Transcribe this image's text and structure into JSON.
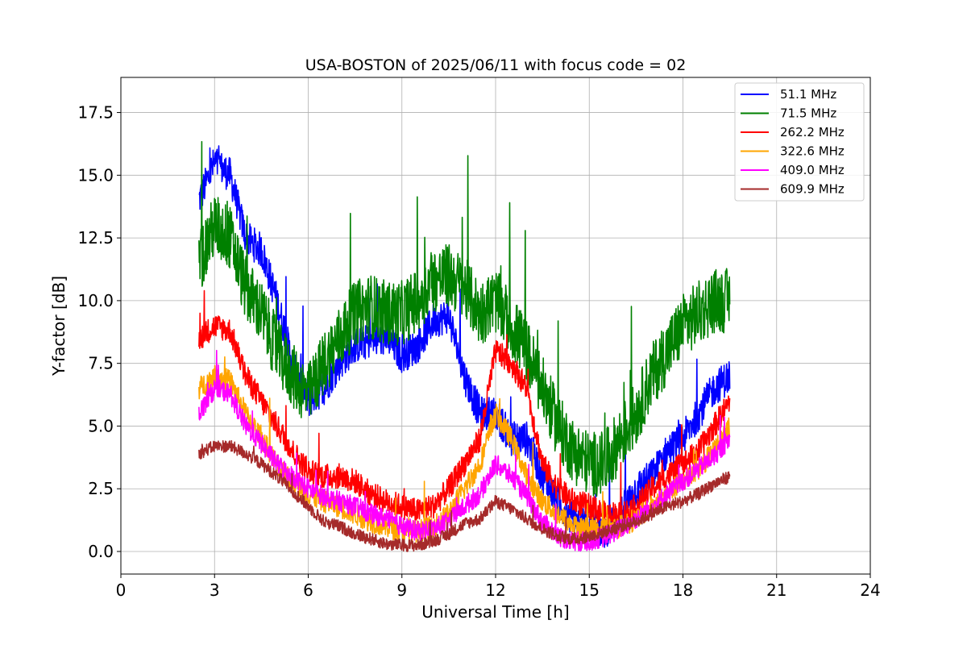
{
  "chart_data": {
    "type": "line",
    "title": "USA-BOSTON of 2025/06/11 with focus code = 02",
    "xlabel": "Universal Time [h]",
    "ylabel": "Y-factor [dB]",
    "xlim": [
      0,
      24
    ],
    "ylim": [
      -0.9,
      18.9
    ],
    "xticks": [
      0,
      3,
      6,
      9,
      12,
      15,
      18,
      21,
      24
    ],
    "xtick_labels": [
      "0",
      "3",
      "6",
      "9",
      "12",
      "15",
      "18",
      "21",
      "24"
    ],
    "yticks": [
      0.0,
      2.5,
      5.0,
      7.5,
      10.0,
      12.5,
      15.0,
      17.5
    ],
    "ytick_labels": [
      "0.0",
      "2.5",
      "5.0",
      "7.5",
      "10.0",
      "12.5",
      "15.0",
      "17.5"
    ],
    "grid": true,
    "legend_position": "top-right",
    "series": [
      {
        "name": "  51.1 MHz",
        "color": "#0000ff",
        "noise": 0.7,
        "x": [
          2.5,
          3.0,
          3.5,
          4.0,
          4.5,
          5.0,
          5.5,
          6.0,
          6.5,
          7.0,
          7.5,
          8.0,
          8.5,
          9.0,
          9.5,
          10.0,
          10.5,
          11.0,
          11.5,
          12.0,
          12.5,
          13.0,
          13.5,
          14.0,
          14.5,
          15.0,
          15.5,
          16.0,
          16.5,
          17.0,
          17.5,
          18.0,
          18.5,
          19.0,
          19.5
        ],
        "y": [
          14.0,
          15.5,
          15.0,
          12.5,
          12.0,
          10.0,
          7.5,
          6.0,
          6.5,
          7.5,
          8.2,
          8.4,
          8.5,
          7.8,
          8.2,
          9.2,
          9.4,
          7.0,
          5.5,
          5.5,
          4.5,
          4.5,
          3.0,
          2.0,
          1.2,
          1.0,
          0.8,
          1.5,
          2.5,
          3.0,
          4.0,
          4.5,
          5.5,
          6.5,
          7.0
        ]
      },
      {
        "name": "  71.5 MHz",
        "color": "#008000",
        "noise": 1.3,
        "x": [
          2.5,
          3.0,
          3.5,
          4.0,
          4.5,
          5.0,
          5.5,
          6.0,
          6.5,
          7.0,
          7.5,
          8.0,
          8.5,
          9.0,
          9.5,
          10.0,
          10.5,
          11.0,
          11.5,
          12.0,
          12.5,
          13.0,
          13.5,
          14.0,
          14.5,
          15.0,
          15.5,
          16.0,
          16.5,
          17.0,
          17.5,
          18.0,
          18.5,
          19.0,
          19.5
        ],
        "y": [
          11.5,
          13.0,
          12.5,
          10.5,
          9.5,
          8.0,
          7.0,
          6.2,
          7.5,
          8.5,
          9.5,
          9.8,
          9.5,
          9.5,
          10.0,
          10.8,
          11.0,
          10.5,
          9.5,
          10.0,
          9.0,
          8.0,
          6.5,
          5.0,
          4.0,
          3.5,
          3.5,
          4.5,
          5.5,
          7.0,
          8.0,
          9.0,
          9.5,
          10.0,
          10.0
        ]
      },
      {
        "name": "262.2 MHz",
        "color": "#ff0000",
        "noise": 0.5,
        "x": [
          2.5,
          3.0,
          3.5,
          4.0,
          4.5,
          5.0,
          5.5,
          6.0,
          6.5,
          7.0,
          7.5,
          8.0,
          8.5,
          9.0,
          9.5,
          10.0,
          10.5,
          11.0,
          11.5,
          12.0,
          12.5,
          13.0,
          13.5,
          14.0,
          14.5,
          15.0,
          15.5,
          16.0,
          16.5,
          17.0,
          17.5,
          18.0,
          18.5,
          19.0,
          19.5
        ],
        "y": [
          8.5,
          9.0,
          8.8,
          7.0,
          6.0,
          5.0,
          4.0,
          3.2,
          3.0,
          3.0,
          2.8,
          2.3,
          2.0,
          1.8,
          1.6,
          1.8,
          2.5,
          3.5,
          4.5,
          8.0,
          7.5,
          6.5,
          3.5,
          2.5,
          2.0,
          1.8,
          1.5,
          1.5,
          1.8,
          2.5,
          3.0,
          3.5,
          4.0,
          5.0,
          6.0
        ]
      },
      {
        "name": "322.6 MHz",
        "color": "#ffa500",
        "noise": 0.45,
        "x": [
          2.5,
          3.0,
          3.5,
          4.0,
          4.5,
          5.0,
          5.5,
          6.0,
          6.5,
          7.0,
          7.5,
          8.0,
          8.5,
          9.0,
          9.5,
          10.0,
          10.5,
          11.0,
          11.5,
          12.0,
          12.5,
          13.0,
          13.5,
          14.0,
          14.5,
          15.0,
          15.5,
          16.0,
          16.5,
          17.0,
          17.5,
          18.0,
          18.5,
          19.0,
          19.5
        ],
        "y": [
          6.5,
          7.0,
          6.8,
          5.5,
          4.5,
          3.5,
          2.8,
          2.3,
          2.0,
          1.8,
          1.5,
          1.2,
          1.0,
          0.8,
          0.8,
          1.0,
          1.5,
          2.5,
          3.5,
          5.5,
          4.5,
          3.0,
          2.0,
          1.5,
          1.0,
          0.9,
          0.9,
          1.0,
          1.3,
          1.8,
          2.3,
          2.8,
          3.3,
          4.0,
          5.0
        ]
      },
      {
        "name": "409.0 MHz",
        "color": "#ff00ff",
        "noise": 0.4,
        "x": [
          2.5,
          3.0,
          3.5,
          4.0,
          4.5,
          5.0,
          5.5,
          6.0,
          6.5,
          7.0,
          7.5,
          8.0,
          8.5,
          9.0,
          9.5,
          10.0,
          10.5,
          11.0,
          11.5,
          12.0,
          12.5,
          13.0,
          13.5,
          14.0,
          14.5,
          15.0,
          15.5,
          16.0,
          16.5,
          17.0,
          17.5,
          18.0,
          18.5,
          19.0,
          19.5
        ],
        "y": [
          5.5,
          6.5,
          6.3,
          5.0,
          4.3,
          3.5,
          3.0,
          2.5,
          2.2,
          2.0,
          1.8,
          1.5,
          1.3,
          1.0,
          0.8,
          0.9,
          1.2,
          1.8,
          2.3,
          3.5,
          3.0,
          2.2,
          1.2,
          0.6,
          0.4,
          0.4,
          0.6,
          0.9,
          1.3,
          1.8,
          2.3,
          2.8,
          3.3,
          3.8,
          4.5
        ]
      },
      {
        "name": "609.9 MHz",
        "color": "#a52a2a",
        "noise": 0.25,
        "x": [
          2.5,
          3.0,
          3.5,
          4.0,
          4.5,
          5.0,
          5.5,
          6.0,
          6.5,
          7.0,
          7.5,
          8.0,
          8.5,
          9.0,
          9.5,
          10.0,
          10.5,
          11.0,
          11.5,
          12.0,
          12.5,
          13.0,
          13.5,
          14.0,
          14.5,
          15.0,
          15.5,
          16.0,
          16.5,
          17.0,
          17.5,
          18.0,
          18.5,
          19.0,
          19.5
        ],
        "y": [
          3.9,
          4.2,
          4.2,
          3.9,
          3.5,
          3.0,
          2.4,
          1.8,
          1.2,
          1.0,
          0.7,
          0.5,
          0.3,
          0.25,
          0.25,
          0.4,
          0.7,
          1.1,
          1.3,
          2.0,
          1.7,
          1.3,
          0.9,
          0.6,
          0.5,
          0.6,
          0.8,
          1.0,
          1.2,
          1.5,
          1.8,
          2.0,
          2.3,
          2.7,
          3.0
        ]
      }
    ]
  }
}
